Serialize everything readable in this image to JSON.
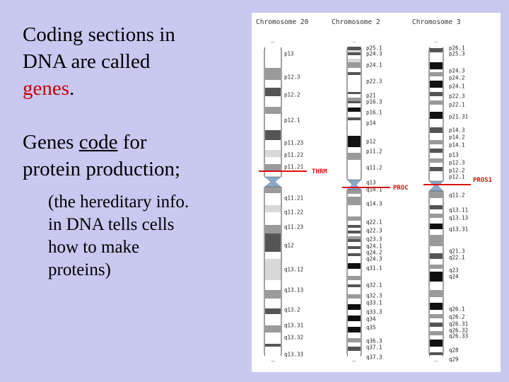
{
  "text": {
    "line1": "Coding sections in",
    "line2": "DNA are called",
    "genes_word": "genes",
    "genes_period": ".",
    "p2_start": "Genes ",
    "p2_code": "code",
    "p2_for": " for",
    "p2_line2": "protein production;",
    "p3_line1": "(the hereditary info.",
    "p3_line2": "in DNA tells cells",
    "p3_line3": "how to make",
    "p3_line4": "proteins)"
  },
  "diagram": {
    "chromosomes": [
      {
        "name": "Chromosome 20",
        "labels": [
          "p13",
          "p12.3",
          "p12.2",
          "p12.1",
          "p11.23",
          "p11.22",
          "p11.21",
          "q11.21",
          "q11.22",
          "q11.23",
          "q12",
          "q13.12",
          "q13.13",
          "q13.2",
          "q13.31",
          "q13.32",
          "q13.33"
        ],
        "gene": "THRM"
      },
      {
        "name": "Chromosome 2",
        "labels": [
          "p25.1",
          "p24.3",
          "p24.1",
          "p22.3",
          "p21",
          "p16.3",
          "p16.1",
          "p14",
          "p12",
          "p11.2",
          "q11.2",
          "q13",
          "q14.1",
          "q14.3",
          "q22.1",
          "q22.3",
          "q23.3",
          "q24.1",
          "q24.2",
          "q24.3",
          "q31.1",
          "q32.1",
          "q32.3",
          "q33.1",
          "q33.3",
          "q34",
          "q35",
          "q36.3",
          "q37.1",
          "q37.3"
        ],
        "gene": "PROC"
      },
      {
        "name": "Chromosome 3",
        "labels": [
          "p26.1",
          "p25.3",
          "p24.3",
          "p24.2",
          "p24.1",
          "p22.3",
          "p22.1",
          "p21.31",
          "p14.3",
          "p14.2",
          "p14.1",
          "p13",
          "p12.3",
          "p12.2",
          "p12.1",
          "q11.2",
          "q13.11",
          "q13.13",
          "q13.31",
          "q21.3",
          "q22.1",
          "q23",
          "q24",
          "q26.1",
          "q26.2",
          "q26.31",
          "q26.32",
          "q26.33",
          "q28",
          "q29"
        ],
        "gene": "PROS1"
      }
    ],
    "marker_color": "#dd1111"
  }
}
